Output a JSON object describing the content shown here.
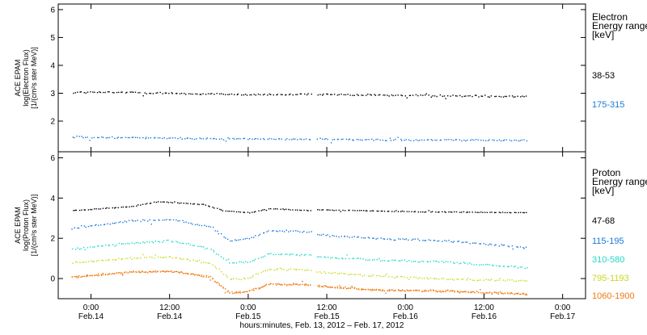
{
  "chart_data": [
    {
      "type": "scatter",
      "panel": "electron",
      "ylabel_lines": [
        "ACE EPAM",
        "log(Electron Flux)",
        "[1/(cm²s ster MeV)]"
      ],
      "legend_title": [
        "Electron",
        "Energy range",
        "[keV]"
      ],
      "ylim": [
        0.9,
        6.2
      ],
      "yticks": [
        2,
        3,
        4,
        5,
        6
      ],
      "data_gap": [
        "2012-02-15 09:30",
        "2012-02-15 10:10"
      ],
      "series": [
        {
          "name": "38-53",
          "color": "#000000",
          "x": [
            "2012-02-13 21:00",
            "2012-02-14 06:00",
            "2012-02-14 15:00",
            "2012-02-15 00:00",
            "2012-02-15 09:30",
            "2012-02-15 10:10",
            "2012-02-15 20:00",
            "2012-02-16 06:00",
            "2012-02-16 18:30"
          ],
          "y": [
            3.05,
            3.05,
            3.0,
            2.97,
            2.97,
            2.97,
            2.95,
            2.93,
            2.9
          ]
        },
        {
          "name": "175-315",
          "color": "#1a7ad8",
          "x": [
            "2012-02-13 21:00",
            "2012-02-14 06:00",
            "2012-02-14 15:00",
            "2012-02-15 00:00",
            "2012-02-15 09:30",
            "2012-02-15 10:10",
            "2012-02-15 20:00",
            "2012-02-16 06:00",
            "2012-02-16 18:30"
          ],
          "y": [
            1.45,
            1.42,
            1.4,
            1.38,
            1.37,
            1.37,
            1.35,
            1.34,
            1.33
          ]
        }
      ]
    },
    {
      "type": "scatter",
      "panel": "proton",
      "ylabel_lines": [
        "ACE EPAM",
        "log(Proton Flux)",
        "[1/(cm²s ster MeV)]"
      ],
      "legend_title": [
        "Proton",
        "Energy range",
        "[keV]"
      ],
      "ylim": [
        -1.0,
        6.3
      ],
      "yticks": [
        0,
        2,
        4,
        6
      ],
      "data_gap": [
        "2012-02-15 09:30",
        "2012-02-15 10:10"
      ],
      "series": [
        {
          "name": "47-68",
          "color": "#000000",
          "x": [
            "2012-02-13 21:00",
            "2012-02-14 06:00",
            "2012-02-14 10:00",
            "2012-02-14 17:00",
            "2012-02-14 20:00",
            "2012-02-15 00:00",
            "2012-02-15 03:00",
            "2012-02-15 09:30",
            "2012-02-15 10:10",
            "2012-02-16 00:00",
            "2012-02-16 18:30"
          ],
          "y": [
            3.4,
            3.6,
            3.85,
            3.7,
            3.4,
            3.3,
            3.5,
            3.4,
            3.45,
            3.35,
            3.3
          ]
        },
        {
          "name": "115-195",
          "color": "#1a7ad8",
          "x": [
            "2012-02-13 21:00",
            "2012-02-14 06:00",
            "2012-02-14 12:00",
            "2012-02-14 18:00",
            "2012-02-14 21:00",
            "2012-02-15 00:00",
            "2012-02-15 03:00",
            "2012-02-15 09:30",
            "2012-02-15 10:10",
            "2012-02-15 20:00",
            "2012-02-16 06:00",
            "2012-02-16 18:30"
          ],
          "y": [
            2.5,
            2.9,
            2.95,
            2.6,
            1.9,
            2.0,
            2.4,
            2.35,
            2.2,
            2.0,
            1.9,
            1.55
          ]
        },
        {
          "name": "310-580",
          "color": "#20d8c8",
          "x": [
            "2012-02-13 21:00",
            "2012-02-14 06:00",
            "2012-02-14 12:00",
            "2012-02-14 18:00",
            "2012-02-14 21:00",
            "2012-02-15 00:00",
            "2012-02-15 03:00",
            "2012-02-15 09:30",
            "2012-02-15 10:10",
            "2012-02-15 20:00",
            "2012-02-16 06:00",
            "2012-02-16 18:30"
          ],
          "y": [
            1.5,
            1.8,
            1.9,
            1.5,
            0.8,
            0.85,
            1.25,
            1.2,
            1.1,
            0.95,
            0.85,
            0.55
          ]
        },
        {
          "name": "795-1193",
          "color": "#c8d81c",
          "x": [
            "2012-02-13 21:00",
            "2012-02-14 06:00",
            "2012-02-14 12:00",
            "2012-02-14 18:00",
            "2012-02-14 21:00",
            "2012-02-15 00:00",
            "2012-02-15 03:00",
            "2012-02-15 09:30",
            "2012-02-15 10:10",
            "2012-02-15 20:00",
            "2012-02-16 06:00",
            "2012-02-16 18:30"
          ],
          "y": [
            0.8,
            1.05,
            1.1,
            0.8,
            0.0,
            0.05,
            0.5,
            0.45,
            0.35,
            0.15,
            0.0,
            -0.1
          ]
        },
        {
          "name": "1060-1900",
          "color": "#f07a10",
          "x": [
            "2012-02-13 21:00",
            "2012-02-14 06:00",
            "2012-02-14 12:00",
            "2012-02-14 18:00",
            "2012-02-14 21:00",
            "2012-02-15 00:00",
            "2012-02-15 03:00",
            "2012-02-15 09:30",
            "2012-02-15 10:10",
            "2012-02-15 20:00",
            "2012-02-16 06:00",
            "2012-02-16 18:30"
          ],
          "y": [
            0.1,
            0.35,
            0.4,
            0.1,
            -0.7,
            -0.6,
            -0.25,
            -0.3,
            -0.35,
            -0.55,
            -0.6,
            -0.75
          ]
        }
      ]
    }
  ],
  "x_axis": {
    "xlim": [
      "2012-02-13 19:00",
      "2012-02-17 03:30"
    ],
    "ticks": [
      {
        "t": "2012-02-14 00:00",
        "time": "0:00",
        "date": "Feb.14"
      },
      {
        "t": "2012-02-14 12:00",
        "time": "12:00",
        "date": "Feb.14"
      },
      {
        "t": "2012-02-15 00:00",
        "time": "0:00",
        "date": "Feb.15"
      },
      {
        "t": "2012-02-15 12:00",
        "time": "12:00",
        "date": "Feb.15"
      },
      {
        "t": "2012-02-16 00:00",
        "time": "0:00",
        "date": "Feb.16"
      },
      {
        "t": "2012-02-16 12:00",
        "time": "12:00",
        "date": "Feb.16"
      },
      {
        "t": "2012-02-17 00:00",
        "time": "0:00",
        "date": "Feb.17"
      }
    ],
    "label": "hours:minutes, Feb. 13, 2012 – Feb. 17, 2012"
  }
}
